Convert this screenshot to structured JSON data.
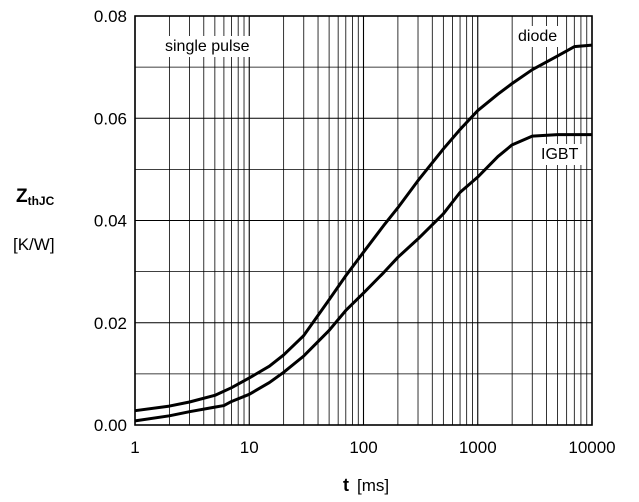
{
  "chart_data": {
    "type": "line",
    "annotation": "single pulse",
    "xlabel": {
      "symbol": "t",
      "unit": "[ms]"
    },
    "ylabel": {
      "symbol": "Z",
      "subscript": "thJC",
      "unit": "[K/W]"
    },
    "x_scale": "log",
    "xlim": [
      1,
      10000
    ],
    "ylim": [
      0,
      0.08
    ],
    "x_ticks": [
      1,
      10,
      100,
      1000,
      10000
    ],
    "x_tick_labels": [
      "1",
      "10",
      "100",
      "1000",
      "10000"
    ],
    "y_ticks": [
      0.0,
      0.02,
      0.04,
      0.06,
      0.08
    ],
    "y_tick_labels": [
      "0.00",
      "0.02",
      "0.04",
      "0.06",
      "0.08"
    ],
    "grid": true,
    "series": [
      {
        "name": "diode",
        "x": [
          1,
          2,
          3,
          5,
          7,
          10,
          15,
          20,
          30,
          50,
          70,
          100,
          150,
          200,
          300,
          500,
          700,
          1000,
          1500,
          2000,
          3000,
          5000,
          7000,
          10000
        ],
        "y": [
          0.0028,
          0.0037,
          0.0045,
          0.0058,
          0.0073,
          0.0092,
          0.0115,
          0.0137,
          0.0175,
          0.0245,
          0.0292,
          0.0338,
          0.039,
          0.0425,
          0.0478,
          0.054,
          0.0578,
          0.0615,
          0.0647,
          0.0668,
          0.0695,
          0.0722,
          0.074,
          0.0743
        ],
        "color": "#000000"
      },
      {
        "name": "IGBT",
        "x": [
          1,
          2,
          3,
          5,
          6,
          7,
          10,
          15,
          20,
          30,
          50,
          70,
          100,
          150,
          200,
          300,
          500,
          700,
          1000,
          1500,
          2000,
          3000,
          5000,
          10000
        ],
        "y": [
          0.0008,
          0.0018,
          0.0026,
          0.0035,
          0.0038,
          0.0046,
          0.006,
          0.0083,
          0.0103,
          0.0135,
          0.0185,
          0.0224,
          0.0258,
          0.0298,
          0.0328,
          0.0364,
          0.0413,
          0.0455,
          0.0485,
          0.0525,
          0.0548,
          0.0565,
          0.0568,
          0.0568
        ],
        "color": "#000000"
      }
    ]
  }
}
